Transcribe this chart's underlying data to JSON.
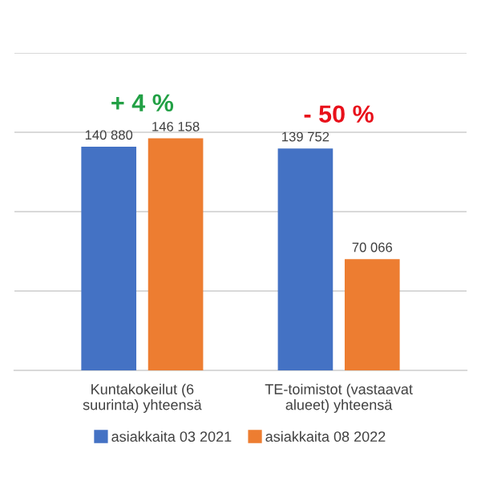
{
  "chart_data": {
    "type": "bar",
    "categories": [
      "Kuntakokeilut (6 suurinta) yhteensä",
      "TE-toimistot (vastaavat alueet) yhteensä"
    ],
    "series": [
      {
        "name": "asiakkaita 03 2021",
        "color": "#4472c4",
        "values": [
          140880,
          139752
        ],
        "value_labels": [
          "140 880",
          "139 752"
        ]
      },
      {
        "name": "asiakkaita 08 2022",
        "color": "#ed7d31",
        "values": [
          146158,
          70066
        ],
        "value_labels": [
          "146 158",
          "70 066"
        ]
      }
    ],
    "ylim": [
      0,
      200000
    ],
    "yticks": [
      {
        "value": 0,
        "label": null
      },
      {
        "value": 50000,
        "label": null
      },
      {
        "value": 100000,
        "label": null
      },
      {
        "value": 150000,
        "label": null
      },
      {
        "value": 200000,
        "label": null
      }
    ],
    "tick_labels": "x",
    "grid": "y",
    "legend": "bottom",
    "annotations": [
      "+ 4 %",
      "- 50 %"
    ]
  }
}
